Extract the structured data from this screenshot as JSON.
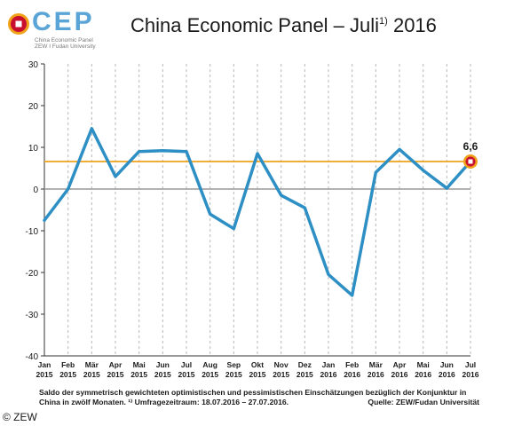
{
  "logo": {
    "name": "CEP",
    "line1": "China Economic Panel",
    "line2": "ZEW I Fudan University"
  },
  "title": {
    "main": "China Economic Panel – Juli",
    "sup": "1)",
    "year": "2016"
  },
  "chart_data": {
    "type": "line",
    "ylim": [
      -40,
      30
    ],
    "yticks": [
      30,
      20,
      10,
      0,
      -10,
      -20,
      -30,
      -40
    ],
    "grid": "vertical dashed",
    "categories": [
      {
        "month": "Jan",
        "year": "2015"
      },
      {
        "month": "Feb",
        "year": "2015"
      },
      {
        "month": "Mär",
        "year": "2015"
      },
      {
        "month": "Apr",
        "year": "2015"
      },
      {
        "month": "Mai",
        "year": "2015"
      },
      {
        "month": "Jun",
        "year": "2015"
      },
      {
        "month": "Jul",
        "year": "2015"
      },
      {
        "month": "Aug",
        "year": "2015"
      },
      {
        "month": "Sep",
        "year": "2015"
      },
      {
        "month": "Okt",
        "year": "2015"
      },
      {
        "month": "Nov",
        "year": "2015"
      },
      {
        "month": "Dez",
        "year": "2015"
      },
      {
        "month": "Jan",
        "year": "2016"
      },
      {
        "month": "Feb",
        "year": "2016"
      },
      {
        "month": "Mär",
        "year": "2016"
      },
      {
        "month": "Apr",
        "year": "2016"
      },
      {
        "month": "Mai",
        "year": "2016"
      },
      {
        "month": "Jun",
        "year": "2016"
      },
      {
        "month": "Jul",
        "year": "2016"
      }
    ],
    "values": [
      -7.5,
      0,
      14.5,
      3,
      9,
      9.2,
      9,
      -6,
      -9.5,
      8.5,
      -1.5,
      -4.5,
      -20.5,
      -25.5,
      4,
      9.5,
      4.5,
      0.2,
      6.6
    ],
    "reference_line": 6.6,
    "last_label": "6,6",
    "colors": {
      "line": "#2e8fc4",
      "reference": "#f0a21a",
      "zero": "#999999",
      "grid": "#b8b8b8",
      "marker_ring": "#f0a21a",
      "marker_fill": "#c8102e"
    }
  },
  "footnote": {
    "text": "Saldo der symmetrisch gewichteten optimistischen und pessimistischen Einschätzungen bezüglich der Konjunktur in China in zwölf Monaten. ¹⁾ Umfragezeitraum: 18.07.2016 – 27.07.2016.",
    "source": "Quelle: ZEW/Fudan Universität"
  },
  "copyright": "© ZEW"
}
